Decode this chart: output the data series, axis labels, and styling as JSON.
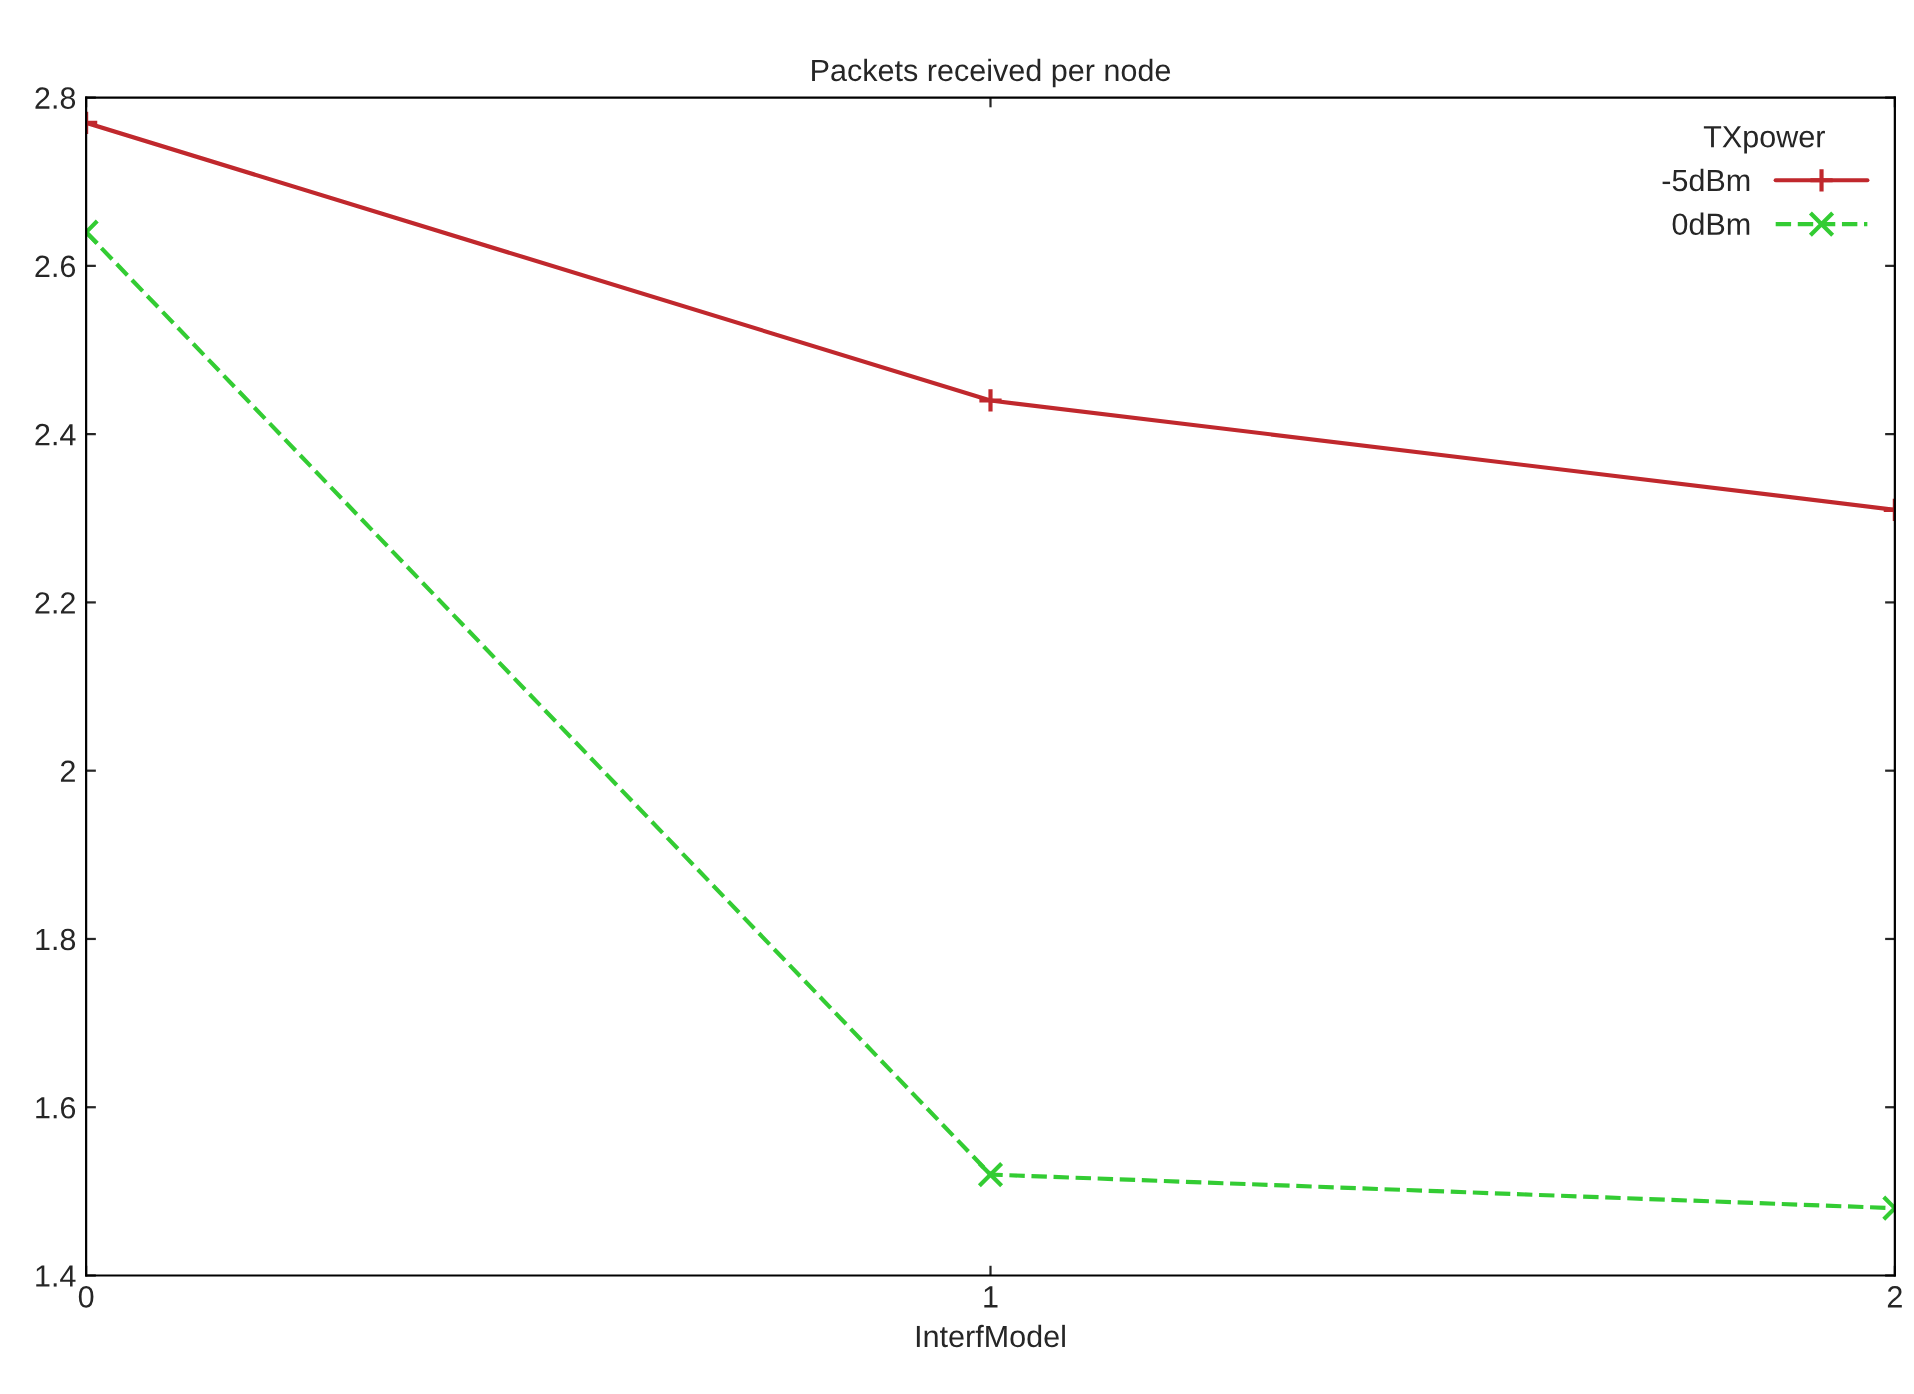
{
  "chart_data": {
    "type": "line",
    "title": "Packets received per node",
    "xlabel": "InterfModel",
    "legend_title": "TXpower",
    "x": [
      0,
      1,
      2
    ],
    "series": [
      {
        "name": "-5dBm",
        "color": "#c0282d",
        "values": [
          2.77,
          2.44,
          2.31
        ],
        "marker": "plus",
        "line_style": "solid"
      },
      {
        "name": "0dBm",
        "color": "#33cc33",
        "values": [
          2.64,
          1.52,
          1.48
        ],
        "marker": "cross",
        "line_style": "dashed"
      }
    ],
    "xlim": [
      0,
      2
    ],
    "xticks": [
      0,
      1,
      2
    ],
    "ylim": [
      1.4,
      2.8
    ],
    "yticks": [
      1.4,
      1.6,
      1.8,
      2,
      2.2,
      2.4,
      2.6,
      2.8
    ],
    "grid": false,
    "legend": "top right"
  }
}
